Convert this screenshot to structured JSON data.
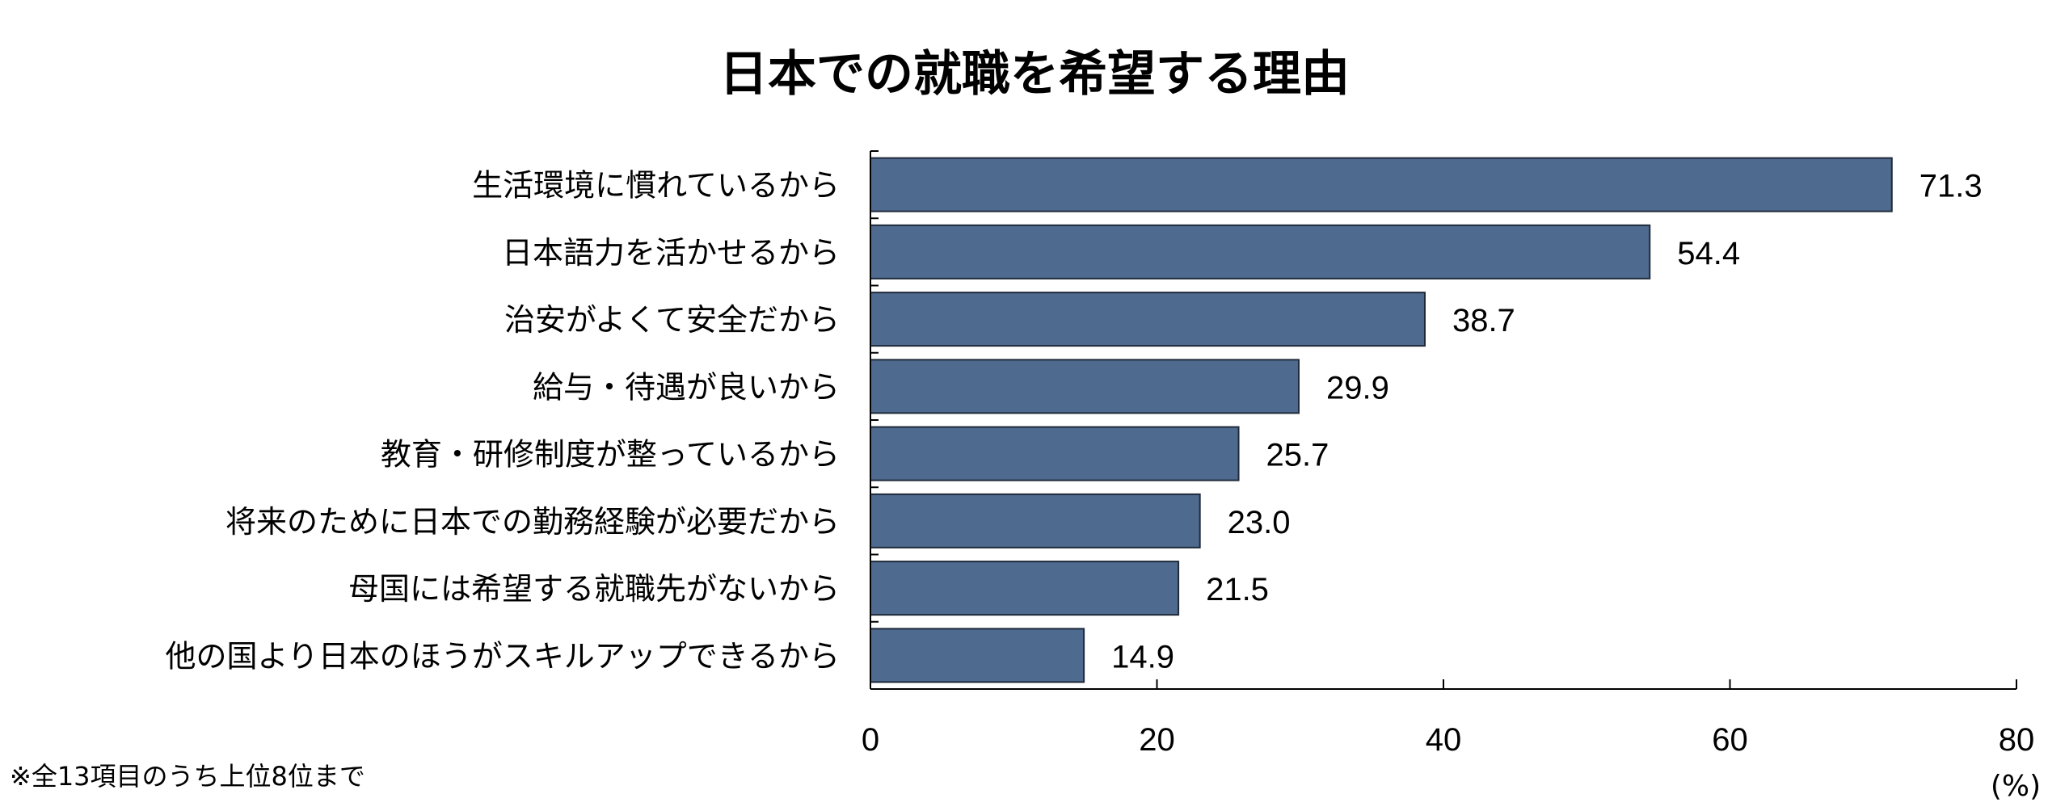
{
  "chart_data": {
    "type": "bar",
    "orientation": "horizontal",
    "title": "日本での就職を希望する理由",
    "categories": [
      "生活環境に慣れているから",
      "日本語力を活かせるから",
      "治安がよくて安全だから",
      "給与・待遇が良いから",
      "教育・研修制度が整っているから",
      "将来のために日本での勤務経験が必要だから",
      "母国には希望する就職先がないから",
      "他の国より日本のほうがスキルアップできるから"
    ],
    "values": [
      71.3,
      54.4,
      38.7,
      29.9,
      25.7,
      23.0,
      21.5,
      14.9
    ],
    "value_labels": [
      "71.3",
      "54.4",
      "38.7",
      "29.9",
      "25.7",
      "23.0",
      "21.5",
      "14.9"
    ],
    "xlim": [
      0,
      80
    ],
    "x_ticks": [
      0,
      20,
      40,
      60,
      80
    ],
    "x_tick_labels": [
      "0",
      "20",
      "40",
      "60",
      "80"
    ],
    "unit_label": "(%)",
    "note": "※全13項目のうち上位8位まで",
    "grid": false,
    "bar_color": "#4f6a8f",
    "bar_edge_color": "#1f2a3a"
  }
}
